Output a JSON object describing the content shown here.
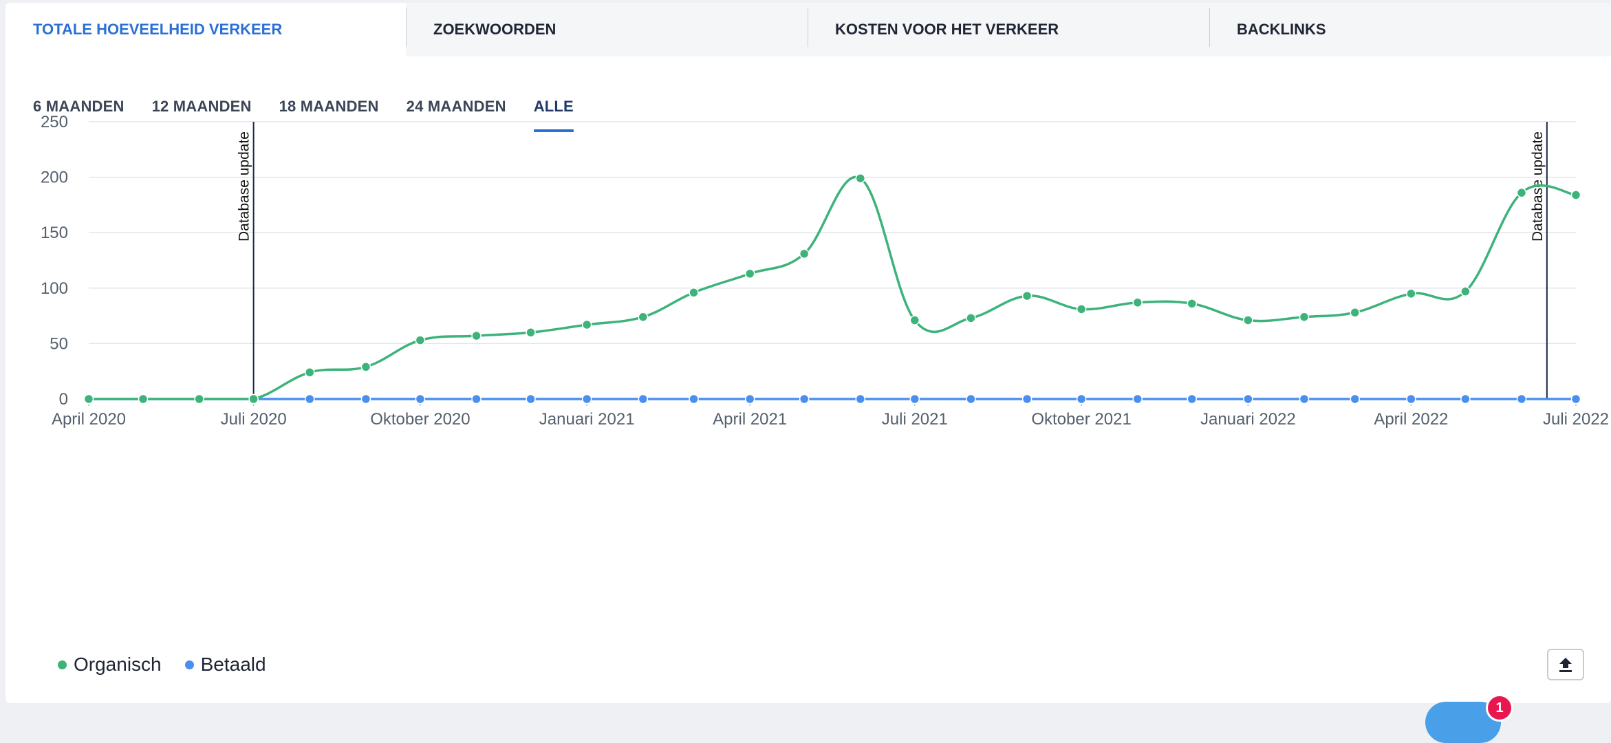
{
  "tabs": [
    {
      "label": "TOTALE HOEVEELHEID VERKEER",
      "active": true
    },
    {
      "label": "ZOEKWOORDEN",
      "active": false
    },
    {
      "label": "KOSTEN VOOR HET VERKEER",
      "active": false
    },
    {
      "label": "BACKLINKS",
      "active": false
    }
  ],
  "periods": [
    {
      "label": "6 MAANDEN",
      "active": false
    },
    {
      "label": "12 MAANDEN",
      "active": false
    },
    {
      "label": "18 MAANDEN",
      "active": false
    },
    {
      "label": "24 MAANDEN",
      "active": false
    },
    {
      "label": "ALLE",
      "active": true
    }
  ],
  "chart_data": {
    "type": "line",
    "title": "",
    "xlabel": "",
    "ylabel": "",
    "x_range": [
      "2020-04-01",
      "2022-07-01"
    ],
    "x_ticks": [
      {
        "date": "2020-04-01",
        "label": "April 2020"
      },
      {
        "date": "2020-07-01",
        "label": "Juli 2020"
      },
      {
        "date": "2020-10-01",
        "label": "Oktober 2020"
      },
      {
        "date": "2021-01-01",
        "label": "Januari 2021"
      },
      {
        "date": "2021-04-01",
        "label": "April 2021"
      },
      {
        "date": "2021-07-01",
        "label": "Juli 2021"
      },
      {
        "date": "2021-10-01",
        "label": "Oktober 2021"
      },
      {
        "date": "2022-01-01",
        "label": "Januari 2022"
      },
      {
        "date": "2022-04-01",
        "label": "April 2022"
      },
      {
        "date": "2022-07-01",
        "label": "Juli 2022"
      }
    ],
    "ylim": [
      0,
      250
    ],
    "y_ticks": [
      0,
      50,
      100,
      150,
      200,
      250
    ],
    "grid": true,
    "legend_position": "bottom-left",
    "annotations": [
      {
        "date": "2020-07-01",
        "label": "Database update"
      },
      {
        "date": "2022-06-15",
        "label": "Database update"
      }
    ],
    "series": [
      {
        "name": "Organisch",
        "color": "#3db37a",
        "points": [
          {
            "x": "2020-04-01",
            "y": 0
          },
          {
            "x": "2020-05-01",
            "y": 0
          },
          {
            "x": "2020-06-01",
            "y": 0
          },
          {
            "x": "2020-07-01",
            "y": 0
          },
          {
            "x": "2020-08-01",
            "y": 24
          },
          {
            "x": "2020-09-01",
            "y": 29
          },
          {
            "x": "2020-10-01",
            "y": 53
          },
          {
            "x": "2020-11-01",
            "y": 57
          },
          {
            "x": "2020-12-01",
            "y": 60
          },
          {
            "x": "2021-01-01",
            "y": 67
          },
          {
            "x": "2021-02-01",
            "y": 74
          },
          {
            "x": "2021-03-01",
            "y": 96
          },
          {
            "x": "2021-04-01",
            "y": 113
          },
          {
            "x": "2021-05-01",
            "y": 131
          },
          {
            "x": "2021-06-01",
            "y": 199
          },
          {
            "x": "2021-07-01",
            "y": 71
          },
          {
            "x": "2021-08-01",
            "y": 73
          },
          {
            "x": "2021-09-01",
            "y": 93
          },
          {
            "x": "2021-10-01",
            "y": 81
          },
          {
            "x": "2021-11-01",
            "y": 87
          },
          {
            "x": "2021-12-01",
            "y": 86
          },
          {
            "x": "2022-01-01",
            "y": 71
          },
          {
            "x": "2022-02-01",
            "y": 74
          },
          {
            "x": "2022-03-01",
            "y": 78
          },
          {
            "x": "2022-04-01",
            "y": 95
          },
          {
            "x": "2022-05-01",
            "y": 97
          },
          {
            "x": "2022-06-01",
            "y": 186
          },
          {
            "x": "2022-07-01",
            "y": 184
          }
        ]
      },
      {
        "name": "Betaald",
        "color": "#4a8ff0",
        "points": [
          {
            "x": "2020-04-01",
            "y": 0
          },
          {
            "x": "2020-05-01",
            "y": 0
          },
          {
            "x": "2020-06-01",
            "y": 0
          },
          {
            "x": "2020-07-01",
            "y": 0
          },
          {
            "x": "2020-08-01",
            "y": 0
          },
          {
            "x": "2020-09-01",
            "y": 0
          },
          {
            "x": "2020-10-01",
            "y": 0
          },
          {
            "x": "2020-11-01",
            "y": 0
          },
          {
            "x": "2020-12-01",
            "y": 0
          },
          {
            "x": "2021-01-01",
            "y": 0
          },
          {
            "x": "2021-02-01",
            "y": 0
          },
          {
            "x": "2021-03-01",
            "y": 0
          },
          {
            "x": "2021-04-01",
            "y": 0
          },
          {
            "x": "2021-05-01",
            "y": 0
          },
          {
            "x": "2021-06-01",
            "y": 0
          },
          {
            "x": "2021-07-01",
            "y": 0
          },
          {
            "x": "2021-08-01",
            "y": 0
          },
          {
            "x": "2021-09-01",
            "y": 0
          },
          {
            "x": "2021-10-01",
            "y": 0
          },
          {
            "x": "2021-11-01",
            "y": 0
          },
          {
            "x": "2021-12-01",
            "y": 0
          },
          {
            "x": "2022-01-01",
            "y": 0
          },
          {
            "x": "2022-02-01",
            "y": 0
          },
          {
            "x": "2022-03-01",
            "y": 0
          },
          {
            "x": "2022-04-01",
            "y": 0
          },
          {
            "x": "2022-05-01",
            "y": 0
          },
          {
            "x": "2022-06-01",
            "y": 0
          },
          {
            "x": "2022-07-01",
            "y": 0
          }
        ]
      }
    ]
  },
  "notification": {
    "count": "1"
  },
  "icons": {
    "export": "upload-icon",
    "chat": "chat-bubble-icon"
  }
}
